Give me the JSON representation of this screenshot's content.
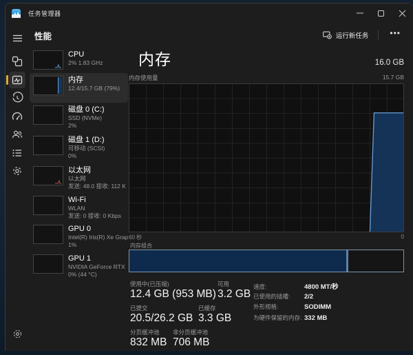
{
  "window": {
    "title": "任务管理器"
  },
  "toolbar": {
    "tab_label": "性能",
    "run_new_task_label": "运行新任务",
    "more_label": "•••"
  },
  "rail": {
    "icons": [
      "menu",
      "processes",
      "performance",
      "app-history",
      "startup-apps",
      "users",
      "details",
      "services"
    ],
    "selected": "performance",
    "accent_pill_color": "#e2a93a",
    "bottom_icon": "settings"
  },
  "sidebar": {
    "items": [
      {
        "title": "CPU",
        "line1": "2% 1.83 GHz",
        "line2": ""
      },
      {
        "title": "内存",
        "line1": "12.4/15.7 GB (79%)",
        "line2": "",
        "selected": true
      },
      {
        "title": "磁盘 0 (C:)",
        "line1": "SSD (NVMe)",
        "line2": "2%"
      },
      {
        "title": "磁盘 1 (D:)",
        "line1": "可移动 (SCSI)",
        "line2": "0%"
      },
      {
        "title": "以太网",
        "line1": "以太网",
        "line2": "发送: 48.0 接收: 112 K"
      },
      {
        "title": "Wi-Fi",
        "line1": "WLAN",
        "line2": "发送: 0 接收: 0 Kbps"
      },
      {
        "title": "GPU 0",
        "line1": "Intel(R) Iris(R) Xe Grap",
        "line2": "1%"
      },
      {
        "title": "GPU 1",
        "line1": "NVIDIA GeForce RTX",
        "line2": "0% (44 °C)"
      }
    ]
  },
  "main": {
    "title": "内存",
    "total": "16.0 GB",
    "usage_chart_label": "内存使用量",
    "usage_chart_max": "15.7 GB",
    "x_axis_left": "60 秒",
    "x_axis_right": "0",
    "composition_label": "内存组合",
    "stats_rows": [
      [
        {
          "label": "使用中(已压缩)",
          "value": "12.4 GB (953 MB)"
        },
        {
          "label": "可用",
          "value": "3.2 GB"
        }
      ],
      [
        {
          "label": "已提交",
          "value": "20.5/26.2 GB"
        },
        {
          "label": "已缓存",
          "value": "3.3 GB"
        }
      ],
      [
        {
          "label": "分页缓冲池",
          "value": "832 MB"
        },
        {
          "label": "非分页缓冲池",
          "value": "706 MB"
        }
      ]
    ],
    "details": [
      {
        "label": "速度:",
        "value": "4800 MT/秒"
      },
      {
        "label": "已使用的插槽:",
        "value": "2/2"
      },
      {
        "label": "外形规格:",
        "value": "SODIMM"
      },
      {
        "label": "为硬件保留的内存:",
        "value": "332 MB"
      }
    ]
  },
  "chart_data": {
    "type": "area",
    "title": "内存使用量",
    "y_axis_max_label": "15.7 GB",
    "x_axis": [
      "60 秒",
      "0"
    ],
    "usage_percent": 79,
    "points_pct": [
      [
        87.8,
        0
      ],
      [
        89.3,
        80.5
      ],
      [
        100,
        80.5
      ]
    ],
    "colors": {
      "line": "#6ba1d8",
      "fill": "#153257",
      "accent": "#e2a93a"
    }
  },
  "composition": {
    "segments": [
      {
        "name": "in-use",
        "width_pct": 79.2
      },
      {
        "name": "divider",
        "width_pct": 0.8
      },
      {
        "name": "free",
        "width_pct": 20.0
      }
    ]
  }
}
